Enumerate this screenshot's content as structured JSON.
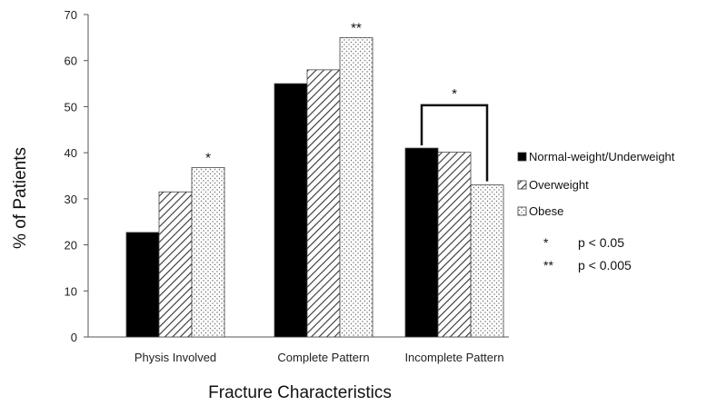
{
  "chart_data": {
    "type": "bar",
    "xlabel": "Fracture Characteristics",
    "ylabel": "% of Patients",
    "ylim": [
      0,
      70
    ],
    "yticks": [
      0,
      10,
      20,
      30,
      40,
      50,
      60,
      70
    ],
    "grid": false,
    "legend_position": "right",
    "categories": [
      "Physis Involved",
      "Complete Pattern",
      "Incomplete Pattern"
    ],
    "series": [
      {
        "name": "Normal-weight/Underweight",
        "values": [
          22.7,
          55,
          41
        ],
        "pattern": "solid",
        "color": "#000000"
      },
      {
        "name": "Overweight",
        "values": [
          31.5,
          58,
          40.1
        ],
        "pattern": "diagonal-hatch",
        "color": "#555555"
      },
      {
        "name": "Obese",
        "values": [
          36.8,
          65,
          33
        ],
        "pattern": "dots",
        "color": "#777777"
      }
    ],
    "annotations": [
      {
        "category": 0,
        "series": 2,
        "text": "*"
      },
      {
        "category": 1,
        "series": 2,
        "text": "**"
      },
      {
        "category": 2,
        "bracket": [
          0,
          2
        ],
        "text": "*"
      }
    ],
    "significance_notes": [
      {
        "symbol": "*",
        "text": "p < 0.05"
      },
      {
        "symbol": "**",
        "text": "p < 0.005"
      }
    ]
  }
}
